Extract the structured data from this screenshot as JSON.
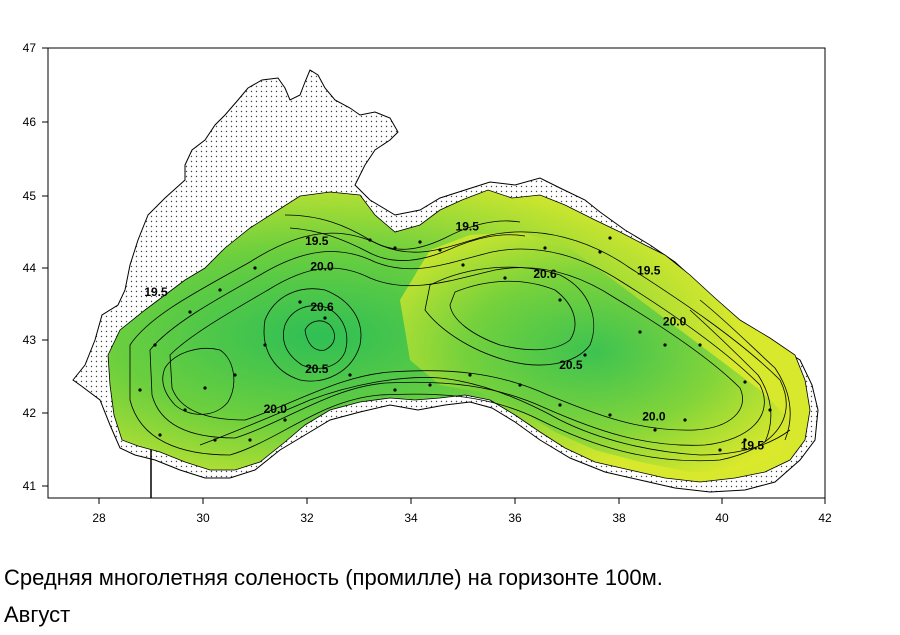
{
  "caption": {
    "line1": "Средняя многолетняя соленость (промилле) на горизонте 100м.",
    "line2": "Август"
  },
  "map": {
    "x_ticks": [
      "28",
      "30",
      "32",
      "34",
      "36",
      "38",
      "40",
      "42"
    ],
    "y_ticks": [
      "47",
      "46",
      "45",
      "44",
      "43",
      "42",
      "41"
    ],
    "contour_labels": [
      {
        "text": "19.5",
        "lon": 32.2,
        "lat": 44.3
      },
      {
        "text": "19.5",
        "lon": 35.1,
        "lat": 44.5
      },
      {
        "text": "19.5",
        "lon": 29.1,
        "lat": 43.6
      },
      {
        "text": "20.0",
        "lon": 32.3,
        "lat": 43.95
      },
      {
        "text": "20.6",
        "lon": 32.3,
        "lat": 43.4
      },
      {
        "text": "20.5",
        "lon": 32.2,
        "lat": 42.55
      },
      {
        "text": "20.0",
        "lon": 31.4,
        "lat": 42.0
      },
      {
        "text": "20.6",
        "lon": 36.6,
        "lat": 43.85
      },
      {
        "text": "20.5",
        "lon": 37.1,
        "lat": 42.6
      },
      {
        "text": "20.0",
        "lon": 38.7,
        "lat": 41.9
      },
      {
        "text": "20.0",
        "lon": 39.1,
        "lat": 43.2
      },
      {
        "text": "19.5",
        "lon": 38.6,
        "lat": 43.9
      },
      {
        "text": "19.5",
        "lon": 40.6,
        "lat": 41.5
      }
    ],
    "colors": {
      "sea_low": "#e6ec2c",
      "sea_mid": "#7ed23a",
      "sea_high": "#2fbf55",
      "land_pattern": "#444444"
    }
  }
}
